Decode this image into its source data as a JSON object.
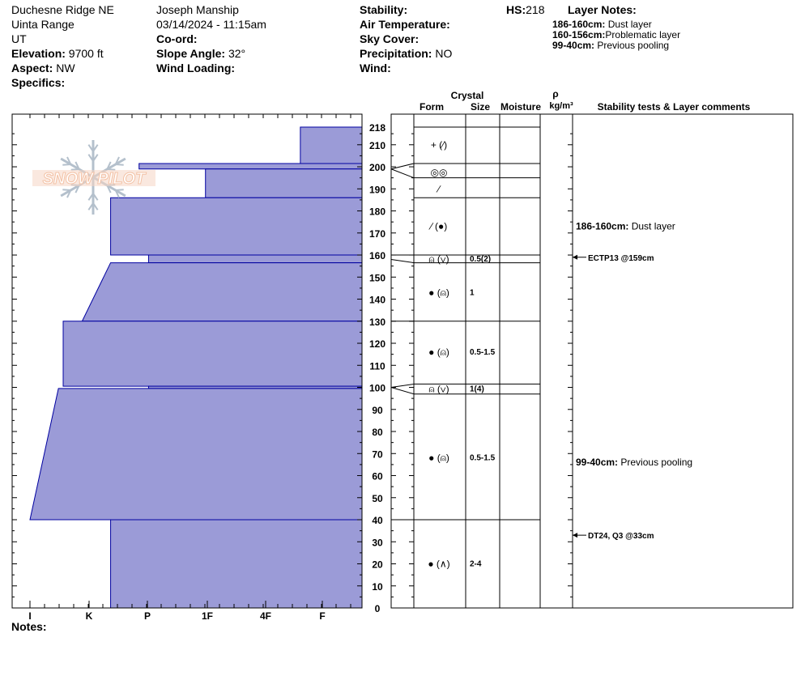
{
  "header": {
    "location": "Duchesne Ridge NE",
    "range": "Uinta Range",
    "state": "UT",
    "elevation_label": "Elevation:",
    "elevation": "9700 ft",
    "aspect_label": "Aspect:",
    "aspect": "NW",
    "specifics_label": "Specifics:",
    "observer": "Joseph Manship",
    "datetime": "03/14/2024 - 11:15am",
    "coord_label": "Co-ord:",
    "slope_label": "Slope Angle:",
    "slope": "32°",
    "wind_loading_label": "Wind Loading:",
    "stability_label": "Stability:",
    "air_temp_label": "Air Temperature:",
    "sky_cover_label": "Sky Cover:",
    "precip_label": "Precipitation:",
    "precip": "NO",
    "wind_label": "Wind:",
    "hs_label": "HS:",
    "hs": "218",
    "layer_notes_label": "Layer Notes:",
    "layer_notes": [
      {
        "range": "186-160cm:",
        "text": "Dust layer"
      },
      {
        "range": "160-156cm:",
        "text": "Problematic layer"
      },
      {
        "range": "99-40cm:",
        "text": "Previous pooling"
      }
    ]
  },
  "watermark": "SNOW PILOT",
  "notes_label": "Notes:",
  "colors": {
    "fill": "#9b9bd7",
    "edge": "#0000a0",
    "line": "#000000",
    "watermark": "#b4c0cc",
    "watermark_text": "#f3c2a6"
  },
  "chart_data": {
    "type": "bar",
    "hardness_categories": [
      "I",
      "K",
      "P",
      "1F",
      "4F",
      "F"
    ],
    "depth_ticks": [
      218,
      210,
      200,
      190,
      180,
      170,
      160,
      150,
      140,
      130,
      120,
      110,
      100,
      90,
      80,
      70,
      60,
      50,
      40,
      30,
      20,
      10,
      0
    ],
    "ylim": [
      0,
      218
    ],
    "hardness_profile": [
      {
        "top": 218,
        "bottom": 201.5,
        "hardness_top": 1.3,
        "hardness_bottom": 1.3
      },
      {
        "top": 201.5,
        "bottom": 199,
        "hardness_top": 4.7,
        "hardness_bottom": 4.7
      },
      {
        "top": 199,
        "bottom": 186,
        "hardness_top": 3.3,
        "hardness_bottom": 3.3
      },
      {
        "top": 186,
        "bottom": 160,
        "hardness_top": 5.3,
        "hardness_bottom": 5.3
      },
      {
        "top": 160,
        "bottom": 156.5,
        "hardness_top": 4.5,
        "hardness_bottom": 4.5
      },
      {
        "top": 156.5,
        "bottom": 130,
        "hardness_top": 5.3,
        "hardness_bottom": 5.9
      },
      {
        "top": 130,
        "bottom": 100.5,
        "hardness_top": 6.3,
        "hardness_bottom": 6.3
      },
      {
        "top": 100.5,
        "bottom": 99.5,
        "hardness_top": 4.5,
        "hardness_bottom": 4.5
      },
      {
        "top": 99.5,
        "bottom": 40,
        "hardness_top": 6.4,
        "hardness_bottom": 7.0
      },
      {
        "top": 40,
        "bottom": 0,
        "hardness_top": 5.3,
        "hardness_bottom": 5.3
      }
    ],
    "column_headers": {
      "crystal": "Crystal",
      "form": "Form",
      "size": "Size",
      "moisture": "Moisture",
      "rho": "ρ",
      "density_unit": "kg/m³",
      "comments": "Stability tests & Layer comments"
    },
    "layer_boundaries": [
      218,
      201.5,
      195,
      186,
      160,
      156.5,
      130,
      101.5,
      97,
      40
    ],
    "layers": [
      {
        "mid": 210,
        "form": "+ (∕)",
        "size": ""
      },
      {
        "mid": 197.5,
        "form": "◎◎",
        "size": ""
      },
      {
        "mid": 190,
        "form": "∕",
        "size": ""
      },
      {
        "mid": 173,
        "form": "∕ (●)",
        "size": ""
      },
      {
        "mid": 158.2,
        "form": "⍝ (∨)",
        "size": "0.5(2)"
      },
      {
        "mid": 143,
        "form": "● (⍝)",
        "size": "1"
      },
      {
        "mid": 116,
        "form": "● (⍝)",
        "size": "0.5-1.5"
      },
      {
        "mid": 99.2,
        "form": "⍝ (∨)",
        "size": "1(4)"
      },
      {
        "mid": 68,
        "form": "● (⍝)",
        "size": "0.5-1.5"
      },
      {
        "mid": 20,
        "form": "● (∧)",
        "size": "2-4"
      }
    ],
    "comments": [
      {
        "depth": 173,
        "range": "186-160cm:",
        "text": "Dust layer",
        "arrow": false
      },
      {
        "depth": 159,
        "range": "",
        "text": "ECTP13 @159cm",
        "arrow": true
      },
      {
        "depth": 66,
        "range": "99-40cm:",
        "text": "Previous pooling",
        "arrow": false
      },
      {
        "depth": 33,
        "range": "",
        "text": "DT24, Q3 @33cm",
        "arrow": true
      }
    ]
  }
}
